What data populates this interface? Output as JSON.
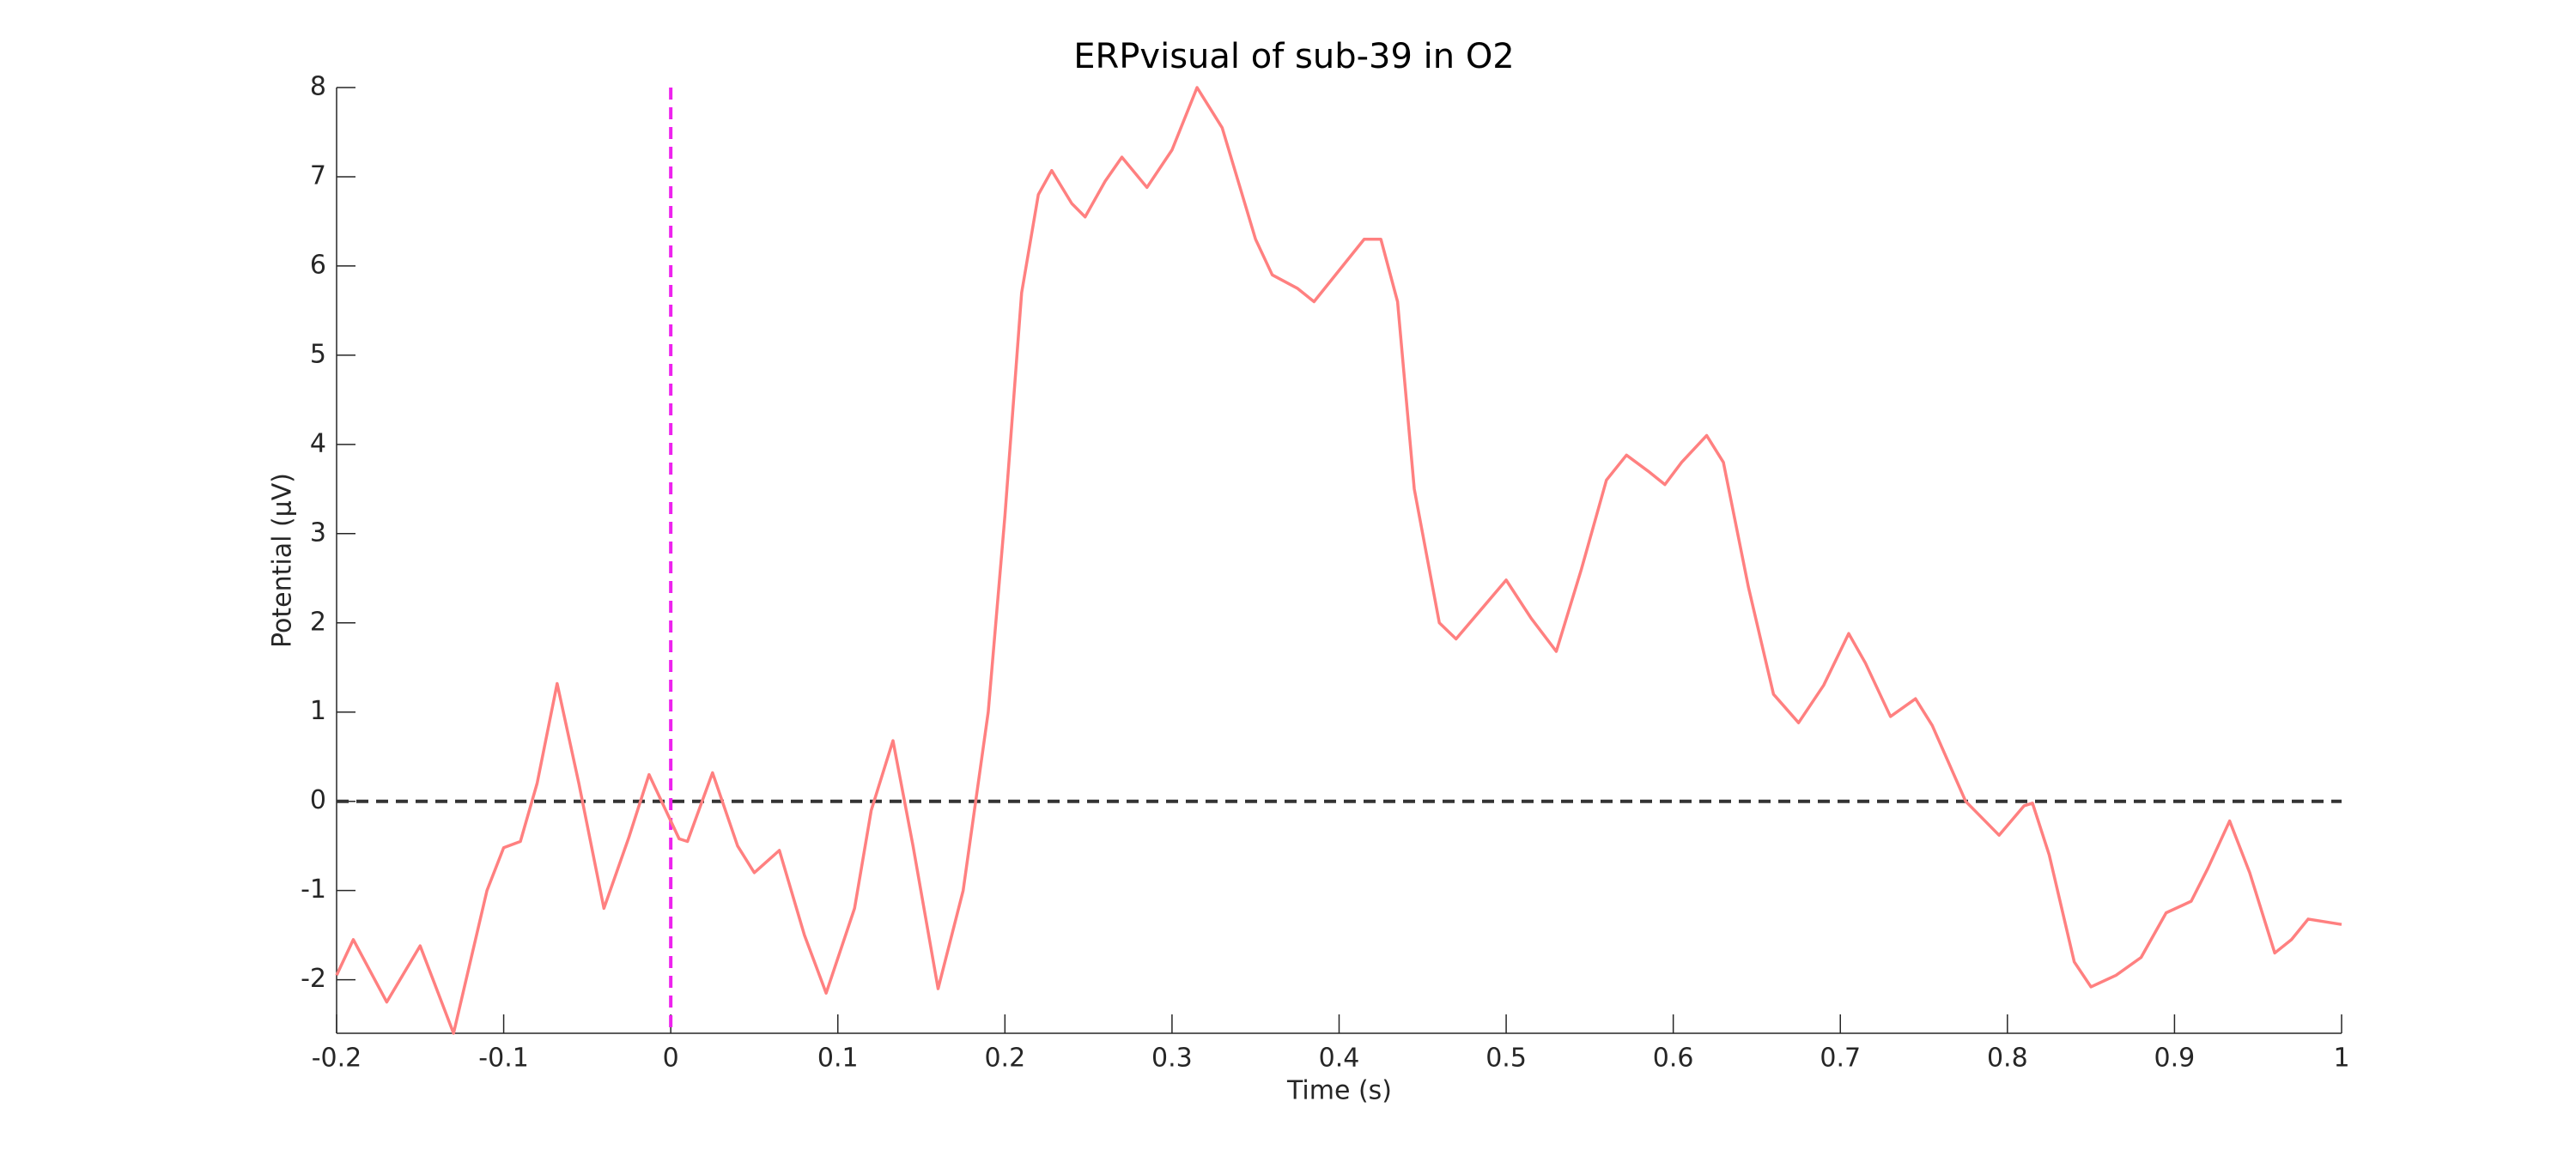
{
  "chart_data": {
    "type": "line",
    "title": "ERPvisual of sub-39 in O2",
    "x_label": "Time (s)",
    "y_label": "Potential (μV)",
    "xlim": [
      -0.2,
      1
    ],
    "ylim": [
      -2.6,
      8
    ],
    "xticks": [
      -0.2,
      -0.1,
      0,
      0.1,
      0.2,
      0.3,
      0.4,
      0.5,
      0.6,
      0.7,
      0.8,
      0.9,
      1
    ],
    "yticks": [
      -2,
      -1,
      0,
      1,
      2,
      3,
      4,
      5,
      6,
      7,
      8
    ],
    "grid": false,
    "reference_lines": [
      {
        "axis": "y",
        "value": 0,
        "color": "#333333",
        "style": "dashed"
      },
      {
        "axis": "x",
        "value": 0,
        "color": "#ee22ee",
        "style": "dashed"
      }
    ],
    "x": [
      -0.2,
      -0.19,
      -0.17,
      -0.15,
      -0.13,
      -0.11,
      -0.1,
      -0.09,
      -0.08,
      -0.068,
      -0.055,
      -0.04,
      -0.025,
      -0.013,
      0.005,
      0.01,
      0.025,
      0.04,
      0.05,
      0.065,
      0.08,
      0.093,
      0.11,
      0.12,
      0.133,
      0.145,
      0.16,
      0.175,
      0.19,
      0.2,
      0.21,
      0.22,
      0.228,
      0.24,
      0.248,
      0.26,
      0.27,
      0.285,
      0.3,
      0.315,
      0.33,
      0.35,
      0.36,
      0.375,
      0.385,
      0.4,
      0.415,
      0.425,
      0.435,
      0.445,
      0.46,
      0.47,
      0.485,
      0.5,
      0.515,
      0.53,
      0.545,
      0.56,
      0.572,
      0.585,
      0.595,
      0.605,
      0.62,
      0.63,
      0.645,
      0.66,
      0.675,
      0.69,
      0.705,
      0.715,
      0.73,
      0.745,
      0.755,
      0.775,
      0.795,
      0.81,
      0.815,
      0.825,
      0.84,
      0.85,
      0.865,
      0.88,
      0.895,
      0.91,
      0.92,
      0.933,
      0.945,
      0.96,
      0.97,
      0.98,
      1
    ],
    "series": [
      {
        "name": "O2",
        "color": "#ff8080",
        "values": [
          -1.95,
          -1.55,
          -2.25,
          -1.62,
          -2.6,
          -1.0,
          -0.52,
          -0.45,
          0.2,
          1.32,
          0.2,
          -1.2,
          -0.4,
          0.3,
          -0.42,
          -0.45,
          0.32,
          -0.5,
          -0.8,
          -0.55,
          -1.5,
          -2.15,
          -1.2,
          -0.1,
          0.68,
          -0.5,
          -2.1,
          -1.0,
          1.0,
          3.2,
          5.7,
          6.8,
          7.07,
          6.7,
          6.55,
          6.95,
          7.22,
          6.88,
          7.3,
          8.0,
          7.55,
          6.3,
          5.9,
          5.75,
          5.6,
          5.95,
          6.3,
          6.3,
          5.6,
          3.5,
          2.0,
          1.82,
          2.15,
          2.48,
          2.05,
          1.68,
          2.6,
          3.6,
          3.88,
          3.7,
          3.55,
          3.8,
          4.1,
          3.8,
          2.4,
          1.2,
          0.88,
          1.3,
          1.88,
          1.55,
          0.95,
          1.15,
          0.85,
          0.0,
          -0.38,
          -0.05,
          -0.02,
          -0.6,
          -1.8,
          -2.08,
          -1.95,
          -1.75,
          -1.25,
          -1.12,
          -0.75,
          -0.22,
          -0.8,
          -1.7,
          -1.55,
          -1.32,
          -1.38
        ]
      }
    ]
  }
}
